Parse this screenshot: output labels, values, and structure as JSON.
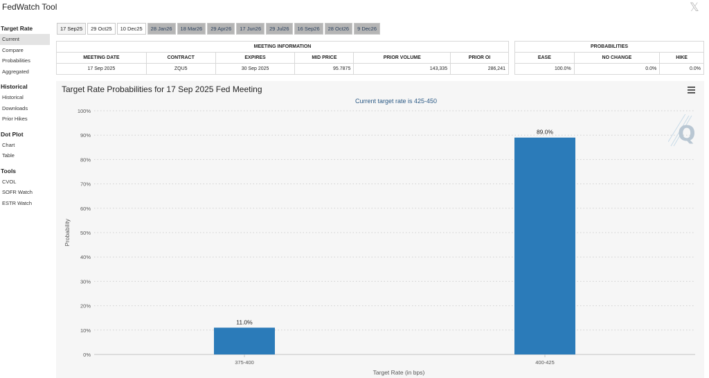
{
  "app": {
    "title": "FedWatch Tool",
    "x_icon": "𝕏"
  },
  "sidebar": [
    {
      "heading": "Target Rate",
      "items": [
        {
          "label": "Current",
          "active": true
        },
        {
          "label": "Compare"
        },
        {
          "label": "Probabilities"
        },
        {
          "label": "Aggregated"
        }
      ]
    },
    {
      "heading": "Historical",
      "items": [
        {
          "label": "Historical"
        },
        {
          "label": "Downloads"
        },
        {
          "label": "Prior Hikes"
        }
      ]
    },
    {
      "heading": "Dot Plot",
      "items": [
        {
          "label": "Chart"
        },
        {
          "label": "Table"
        }
      ]
    },
    {
      "heading": "Tools",
      "items": [
        {
          "label": "CVOL"
        },
        {
          "label": "SOFR Watch"
        },
        {
          "label": "ESTR Watch"
        }
      ]
    }
  ],
  "tabs": [
    {
      "label": "17 Sep25",
      "state": "selected"
    },
    {
      "label": "29 Oct25",
      "state": "white"
    },
    {
      "label": "10 Dec25",
      "state": "white"
    },
    {
      "label": "28 Jan26",
      "state": "grey"
    },
    {
      "label": "18 Mar26",
      "state": "grey"
    },
    {
      "label": "29 Apr26",
      "state": "grey"
    },
    {
      "label": "17 Jun26",
      "state": "grey"
    },
    {
      "label": "29 Jul26",
      "state": "grey"
    },
    {
      "label": "16 Sep26",
      "state": "grey"
    },
    {
      "label": "28 Oct26",
      "state": "grey"
    },
    {
      "label": "9 Dec26",
      "state": "grey"
    }
  ],
  "meeting_info": {
    "header": "MEETING INFORMATION",
    "columns": [
      "MEETING DATE",
      "CONTRACT",
      "EXPIRES",
      "MID PRICE",
      "PRIOR VOLUME",
      "PRIOR OI"
    ],
    "row": [
      "17 Sep 2025",
      "ZQU5",
      "30 Sep 2025",
      "95.7875",
      "143,335",
      "286,241"
    ]
  },
  "probabilities": {
    "header": "PROBABILITIES",
    "columns": [
      "EASE",
      "NO CHANGE",
      "HIKE"
    ],
    "row": [
      "100.0%",
      "0.0%",
      "0.0%"
    ]
  },
  "chart": {
    "title": "Target Rate Probabilities for 17 Sep 2025 Fed Meeting",
    "subtitle": "Current target rate is 425-450",
    "menu_icon": "hamburger-menu-icon",
    "watermark_letter": "Q"
  },
  "chart_data": {
    "type": "bar",
    "categories": [
      "375-400",
      "400-425"
    ],
    "values": [
      11.0,
      89.0
    ],
    "data_labels": [
      "11.0%",
      "89.0%"
    ],
    "xlabel": "Target Rate (in bps)",
    "ylabel": "Probability",
    "ylim": [
      0,
      100
    ],
    "yticks": [
      "0%",
      "10%",
      "20%",
      "30%",
      "40%",
      "50%",
      "60%",
      "70%",
      "80%",
      "90%",
      "100%"
    ],
    "ytick_values": [
      0,
      10,
      20,
      30,
      40,
      50,
      60,
      70,
      80,
      90,
      100
    ],
    "bar_color": "#2b7bb9",
    "grid": true
  }
}
